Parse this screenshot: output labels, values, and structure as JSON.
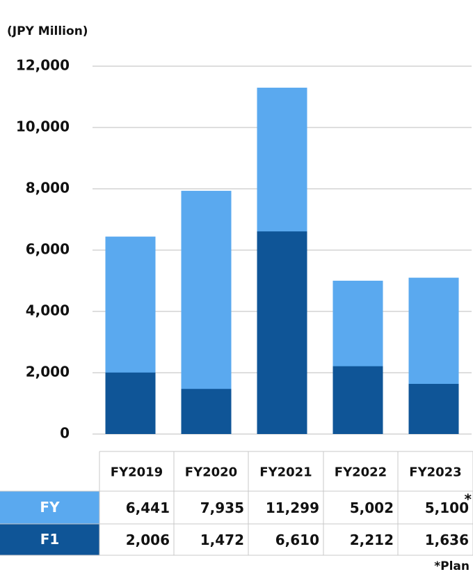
{
  "chart_data": {
    "type": "bar",
    "title": "(JPY Million)",
    "categories": [
      "FY2019",
      "FY2020",
      "FY2021",
      "FY2022",
      "FY2023"
    ],
    "series": [
      {
        "name": "FY",
        "color": "#5aa9ef",
        "values": [
          6441,
          7935,
          11299,
          5002,
          5100
        ],
        "value_labels": [
          "6,441",
          "7,935",
          "11,299",
          "5,002",
          "5,100"
        ]
      },
      {
        "name": "F1",
        "color": "#0f5597",
        "values": [
          2006,
          1472,
          6610,
          2212,
          1636
        ],
        "value_labels": [
          "2,006",
          "1,472",
          "6,610",
          "2,212",
          "1,636"
        ]
      }
    ],
    "ylim": [
      0,
      12000
    ],
    "yticks": [
      0,
      {
        "value": 2000,
        "label": "2,000"
      },
      {
        "value": 4000,
        "label": "4,000"
      },
      {
        "value": 6000,
        "label": "6,000"
      },
      {
        "value": 8000,
        "label": "8,000"
      },
      {
        "value": 10000,
        "label": "10,000"
      },
      {
        "value": 12000,
        "label": "12,000"
      }
    ],
    "grid": true,
    "note_mark": "*",
    "note": "*Plan"
  }
}
